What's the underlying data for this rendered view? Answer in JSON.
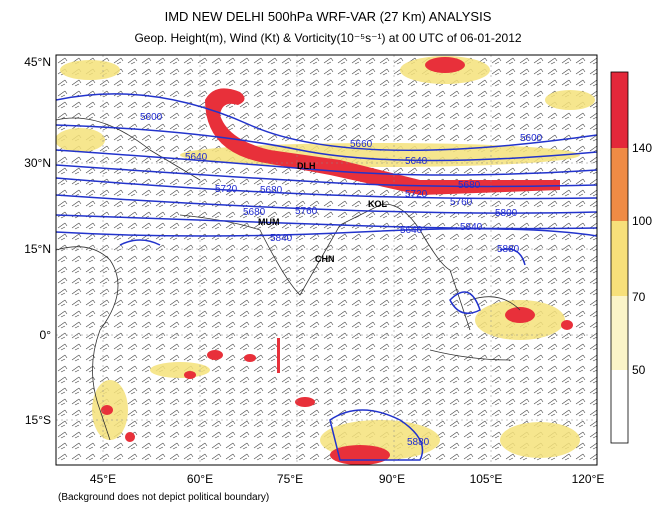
{
  "title": "IMD NEW DELHI 500hPa WRF-VAR (27 Km) ANALYSIS",
  "subtitle": "Geop. Height(m), Wind (Kt) & Vorticity(10⁻⁵s⁻¹) at 00 UTC of 06-01-2012",
  "lat_labels": [
    "45°N",
    "30°N",
    "15°N",
    "0°",
    "15°S"
  ],
  "lon_labels": [
    "45°E",
    "60°E",
    "75°E",
    "90°E",
    "105°E",
    "120°E"
  ],
  "colorbar": {
    "labels": [
      140,
      100,
      70,
      50
    ]
  },
  "contour_labels": [
    "5600",
    "5640",
    "5660",
    "5600",
    "5640",
    "5680",
    "5720",
    "5680",
    "5720",
    "5760",
    "5680",
    "5760",
    "5800",
    "5640",
    "5840",
    "5840",
    "5880",
    "5880"
  ],
  "cities": [
    "DLH",
    "KOL",
    "MUM",
    "CHN"
  ],
  "footnote": "(Background does not depict political boundary)"
}
